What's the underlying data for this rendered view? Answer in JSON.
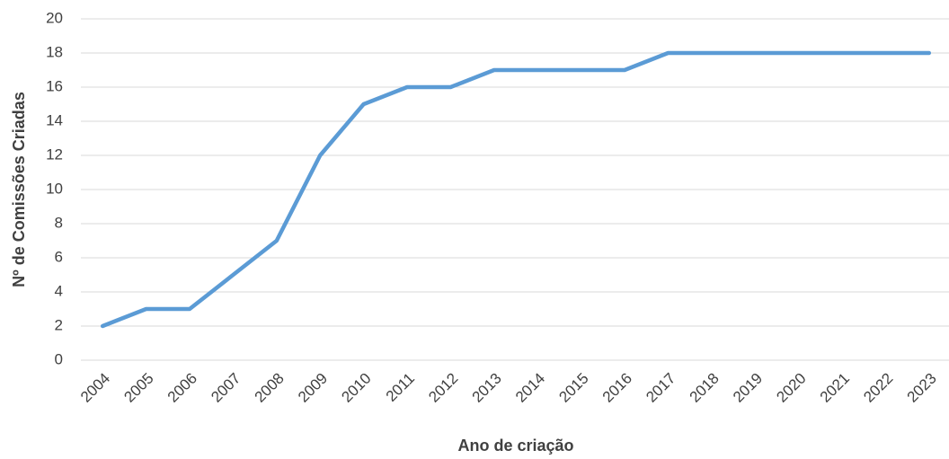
{
  "chart_data": {
    "type": "line",
    "xlabel": "Ano de criação",
    "ylabel": "Nº de Comissões Criadas",
    "categories": [
      "2004",
      "2005",
      "2006",
      "2007",
      "2008",
      "2009",
      "2010",
      "2011",
      "2012",
      "2013",
      "2014",
      "2015",
      "2016",
      "2017",
      "2018",
      "2019",
      "2020",
      "2021",
      "2022",
      "2023"
    ],
    "values": [
      2,
      3,
      3,
      5,
      7,
      12,
      15,
      16,
      16,
      17,
      17,
      17,
      17,
      18,
      18,
      18,
      18,
      18,
      18,
      18
    ],
    "color": "#5b9bd5",
    "ylim": [
      0,
      20
    ],
    "yticks": [
      0,
      2,
      4,
      6,
      8,
      10,
      12,
      14,
      16,
      18,
      20
    ],
    "grid": true
  }
}
